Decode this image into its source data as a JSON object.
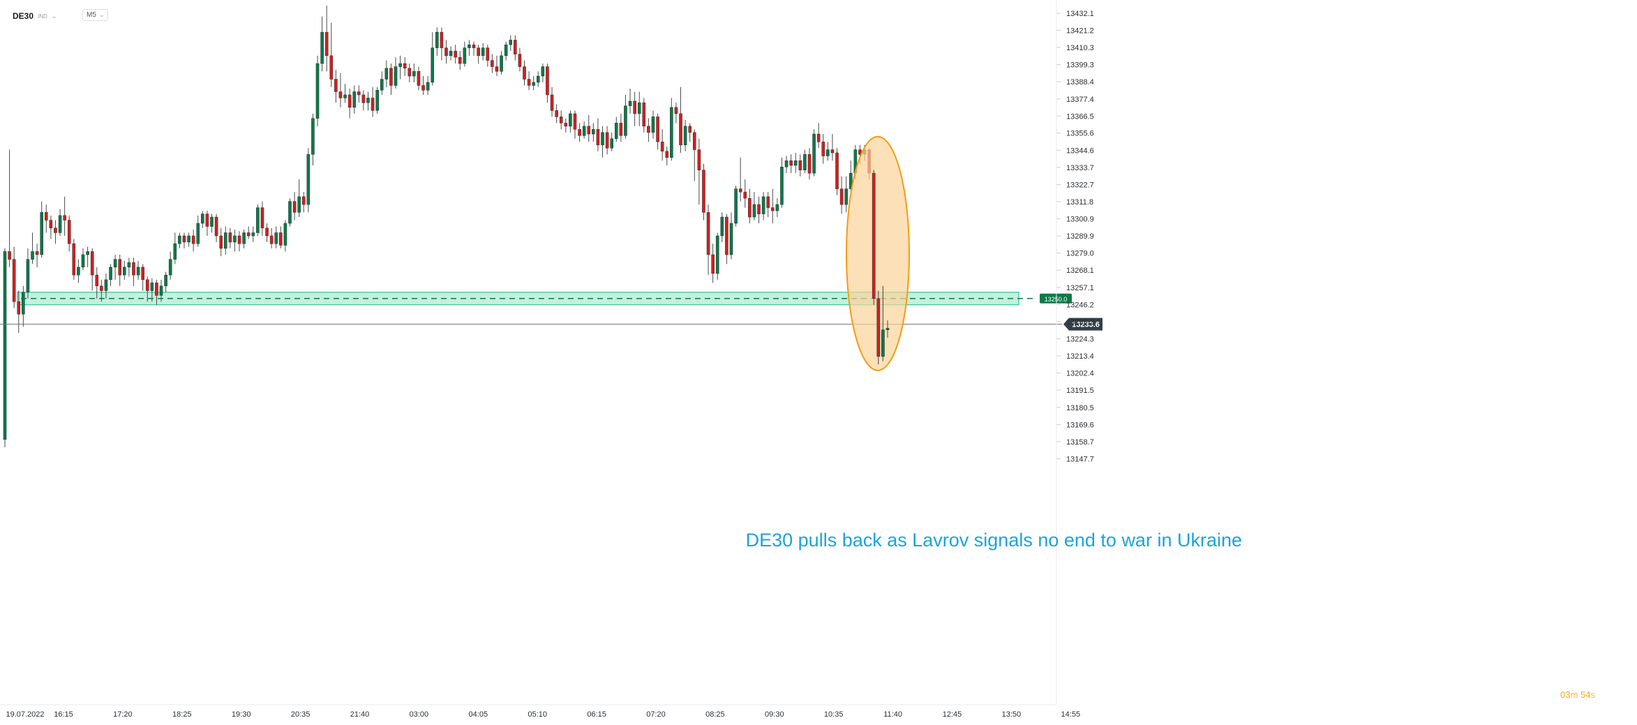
{
  "header": {
    "symbol": "DE30",
    "indicator_label": "IND",
    "timeframe": "M5",
    "chevron_icon": "chevron-down-icon"
  },
  "countdown": {
    "minutes": "03",
    "minutes_unit": "m",
    "seconds": "54",
    "seconds_unit": "s"
  },
  "colors": {
    "up": "#0b7a4b",
    "down": "#d0201f",
    "zone": "#2ec58a",
    "highlight_fill": "#fbd39a",
    "highlight_stroke": "#f39c12",
    "annotation": "#1aa3e0",
    "price_tag": "#333f48"
  },
  "chart_data": {
    "type": "candlestick",
    "instrument": "DE30",
    "ylim": [
      13143,
      13437
    ],
    "y_ticks": [
      13432.1,
      13421.2,
      13410.3,
      13399.3,
      13388.4,
      13377.4,
      13366.5,
      13355.6,
      13344.6,
      13333.7,
      13322.7,
      13311.8,
      13300.9,
      13289.9,
      13279.0,
      13268.1,
      13257.1,
      13246.2,
      13235.2,
      13224.3,
      13213.4,
      13202.4,
      13191.5,
      13180.5,
      13169.6,
      13158.7,
      13147.7
    ],
    "x_ticks": [
      "19.07.2022",
      "16:15",
      "17:20",
      "18:25",
      "19:30",
      "20:35",
      "21:40",
      "03:00",
      "04:05",
      "05:10",
      "06:15",
      "07:20",
      "08:25",
      "09:30",
      "10:35",
      "11:40",
      "12:45",
      "13:50",
      "14:55"
    ],
    "current_price": "13233.6",
    "alert_level": {
      "value": 13250.0,
      "label": "13250.0"
    },
    "support_zone": [
      13246,
      13254
    ],
    "annotation": "DE30 pulls back as Lavrov signals no end to war in Ukraine",
    "candles": [
      [
        13160,
        13280,
        13155,
        13282
      ],
      [
        13280,
        13275,
        13270,
        13345
      ],
      [
        13275,
        13248,
        13244,
        13283
      ],
      [
        13248,
        13240,
        13228,
        13255
      ],
      [
        13240,
        13254,
        13232,
        13258
      ],
      [
        13254,
        13275,
        13250,
        13282
      ],
      [
        13275,
        13280,
        13272,
        13292
      ],
      [
        13280,
        13278,
        13270,
        13285
      ],
      [
        13278,
        13305,
        13276,
        13312
      ],
      [
        13305,
        13300,
        13292,
        13310
      ],
      [
        13300,
        13295,
        13288,
        13303
      ],
      [
        13295,
        13292,
        13285,
        13300
      ],
      [
        13292,
        13303,
        13290,
        13307
      ],
      [
        13303,
        13300,
        13290,
        13315
      ],
      [
        13300,
        13285,
        13280,
        13303
      ],
      [
        13285,
        13265,
        13262,
        13288
      ],
      [
        13265,
        13270,
        13260,
        13275
      ],
      [
        13270,
        13278,
        13268,
        13282
      ],
      [
        13278,
        13280,
        13270,
        13283
      ],
      [
        13280,
        13265,
        13255,
        13282
      ],
      [
        13265,
        13258,
        13250,
        13270
      ],
      [
        13258,
        13255,
        13248,
        13262
      ],
      [
        13255,
        13262,
        13250,
        13266
      ],
      [
        13262,
        13270,
        13258,
        13272
      ],
      [
        13270,
        13275,
        13262,
        13278
      ],
      [
        13275,
        13265,
        13258,
        13278
      ],
      [
        13265,
        13270,
        13262,
        13274
      ],
      [
        13270,
        13273,
        13264,
        13276
      ],
      [
        13273,
        13265,
        13258,
        13276
      ],
      [
        13265,
        13270,
        13262,
        13274
      ],
      [
        13270,
        13262,
        13255,
        13272
      ],
      [
        13262,
        13255,
        13248,
        13264
      ],
      [
        13255,
        13260,
        13248,
        13263
      ],
      [
        13260,
        13252,
        13246,
        13262
      ],
      [
        13252,
        13258,
        13248,
        13262
      ],
      [
        13258,
        13265,
        13254,
        13267
      ],
      [
        13265,
        13275,
        13262,
        13280
      ],
      [
        13275,
        13285,
        13272,
        13292
      ],
      [
        13285,
        13290,
        13282,
        13292
      ],
      [
        13290,
        13286,
        13282,
        13292
      ],
      [
        13286,
        13290,
        13283,
        13292
      ],
      [
        13290,
        13285,
        13280,
        13294
      ],
      [
        13285,
        13298,
        13283,
        13303
      ],
      [
        13298,
        13304,
        13295,
        13306
      ],
      [
        13304,
        13296,
        13290,
        13306
      ],
      [
        13296,
        13302,
        13292,
        13304
      ],
      [
        13302,
        13290,
        13286,
        13304
      ],
      [
        13290,
        13282,
        13277,
        13295
      ],
      [
        13282,
        13292,
        13278,
        13296
      ],
      [
        13292,
        13286,
        13282,
        13295
      ],
      [
        13286,
        13290,
        13280,
        13294
      ],
      [
        13290,
        13285,
        13280,
        13293
      ],
      [
        13285,
        13292,
        13282,
        13294
      ],
      [
        13292,
        13290,
        13288,
        13296
      ],
      [
        13290,
        13292,
        13286,
        13296
      ],
      [
        13292,
        13308,
        13290,
        13310
      ],
      [
        13308,
        13295,
        13290,
        13312
      ],
      [
        13295,
        13290,
        13286,
        13298
      ],
      [
        13290,
        13285,
        13282,
        13295
      ],
      [
        13285,
        13292,
        13282,
        13296
      ],
      [
        13292,
        13284,
        13282,
        13296
      ],
      [
        13284,
        13298,
        13280,
        13300
      ],
      [
        13298,
        13312,
        13296,
        13314
      ],
      [
        13312,
        13305,
        13300,
        13318
      ],
      [
        13305,
        13315,
        13302,
        13326
      ],
      [
        13315,
        13310,
        13305,
        13318
      ],
      [
        13310,
        13342,
        13305,
        13346
      ],
      [
        13342,
        13365,
        13335,
        13368
      ],
      [
        13365,
        13400,
        13360,
        13405
      ],
      [
        13400,
        13420,
        13395,
        13430
      ],
      [
        13420,
        13405,
        13395,
        13437
      ],
      [
        13405,
        13390,
        13385,
        13426
      ],
      [
        13390,
        13382,
        13375,
        13396
      ],
      [
        13382,
        13378,
        13372,
        13394
      ],
      [
        13378,
        13380,
        13375,
        13387
      ],
      [
        13380,
        13372,
        13365,
        13384
      ],
      [
        13372,
        13382,
        13368,
        13386
      ],
      [
        13382,
        13380,
        13375,
        13386
      ],
      [
        13380,
        13375,
        13370,
        13383
      ],
      [
        13375,
        13378,
        13370,
        13382
      ],
      [
        13378,
        13370,
        13366,
        13385
      ],
      [
        13370,
        13383,
        13368,
        13385
      ],
      [
        13383,
        13390,
        13380,
        13395
      ],
      [
        13390,
        13397,
        13385,
        13402
      ],
      [
        13397,
        13386,
        13380,
        13400
      ],
      [
        13386,
        13398,
        13384,
        13404
      ],
      [
        13398,
        13400,
        13390,
        13405
      ],
      [
        13400,
        13397,
        13392,
        13404
      ],
      [
        13397,
        13392,
        13388,
        13400
      ],
      [
        13392,
        13395,
        13388,
        13400
      ],
      [
        13395,
        13386,
        13383,
        13398
      ],
      [
        13386,
        13383,
        13380,
        13392
      ],
      [
        13383,
        13388,
        13380,
        13392
      ],
      [
        13388,
        13410,
        13386,
        13420
      ],
      [
        13410,
        13420,
        13405,
        13423
      ],
      [
        13420,
        13410,
        13402,
        13423
      ],
      [
        13410,
        13405,
        13400,
        13415
      ],
      [
        13405,
        13408,
        13402,
        13411
      ],
      [
        13408,
        13404,
        13400,
        13412
      ],
      [
        13404,
        13400,
        13396,
        13408
      ],
      [
        13400,
        13410,
        13398,
        13414
      ],
      [
        13410,
        13412,
        13405,
        13415
      ],
      [
        13412,
        13410,
        13405,
        13414
      ],
      [
        13410,
        13405,
        13400,
        13412
      ],
      [
        13405,
        13410,
        13402,
        13413
      ],
      [
        13410,
        13402,
        13398,
        13412
      ],
      [
        13402,
        13398,
        13394,
        13406
      ],
      [
        13398,
        13395,
        13392,
        13405
      ],
      [
        13395,
        13405,
        13393,
        13408
      ],
      [
        13405,
        13412,
        13402,
        13414
      ],
      [
        13412,
        13415,
        13408,
        13418
      ],
      [
        13415,
        13406,
        13402,
        13418
      ],
      [
        13406,
        13398,
        13395,
        13410
      ],
      [
        13398,
        13390,
        13386,
        13402
      ],
      [
        13390,
        13386,
        13383,
        13395
      ],
      [
        13386,
        13388,
        13383,
        13392
      ],
      [
        13388,
        13392,
        13385,
        13395
      ],
      [
        13392,
        13398,
        13388,
        13400
      ],
      [
        13398,
        13380,
        13375,
        13400
      ],
      [
        13380,
        13370,
        13366,
        13385
      ],
      [
        13370,
        13366,
        13362,
        13374
      ],
      [
        13366,
        13362,
        13358,
        13370
      ],
      [
        13362,
        13360,
        13356,
        13365
      ],
      [
        13360,
        13368,
        13356,
        13370
      ],
      [
        13368,
        13358,
        13352,
        13370
      ],
      [
        13358,
        13354,
        13350,
        13362
      ],
      [
        13354,
        13360,
        13352,
        13363
      ],
      [
        13360,
        13355,
        13350,
        13367
      ],
      [
        13355,
        13358,
        13350,
        13362
      ],
      [
        13358,
        13348,
        13344,
        13365
      ],
      [
        13348,
        13356,
        13340,
        13360
      ],
      [
        13356,
        13346,
        13342,
        13360
      ],
      [
        13346,
        13352,
        13344,
        13356
      ],
      [
        13352,
        13362,
        13350,
        13366
      ],
      [
        13362,
        13354,
        13350,
        13368
      ],
      [
        13354,
        13373,
        13352,
        13380
      ],
      [
        13373,
        13376,
        13368,
        13384
      ],
      [
        13376,
        13368,
        13360,
        13382
      ],
      [
        13368,
        13375,
        13360,
        13382
      ],
      [
        13375,
        13360,
        13356,
        13378
      ],
      [
        13360,
        13356,
        13350,
        13365
      ],
      [
        13356,
        13366,
        13352,
        13370
      ],
      [
        13366,
        13350,
        13345,
        13368
      ],
      [
        13350,
        13344,
        13338,
        13358
      ],
      [
        13344,
        13340,
        13335,
        13347
      ],
      [
        13340,
        13372,
        13338,
        13378
      ],
      [
        13372,
        13368,
        13362,
        13375
      ],
      [
        13368,
        13348,
        13343,
        13385
      ],
      [
        13348,
        13360,
        13344,
        13364
      ],
      [
        13360,
        13356,
        13350,
        13362
      ],
      [
        13356,
        13345,
        13325,
        13358
      ],
      [
        13345,
        13332,
        13310,
        13352
      ],
      [
        13332,
        13305,
        13300,
        13336
      ],
      [
        13305,
        13278,
        13265,
        13310
      ],
      [
        13278,
        13266,
        13260,
        13285
      ],
      [
        13266,
        13290,
        13262,
        13292
      ],
      [
        13290,
        13302,
        13286,
        13305
      ],
      [
        13302,
        13278,
        13272,
        13304
      ],
      [
        13278,
        13298,
        13275,
        13305
      ],
      [
        13298,
        13320,
        13296,
        13322
      ],
      [
        13320,
        13318,
        13312,
        13340
      ],
      [
        13318,
        13314,
        13308,
        13326
      ],
      [
        13314,
        13302,
        13298,
        13320
      ],
      [
        13302,
        13310,
        13300,
        13318
      ],
      [
        13310,
        13304,
        13298,
        13315
      ],
      [
        13304,
        13315,
        13300,
        13318
      ],
      [
        13315,
        13308,
        13302,
        13318
      ],
      [
        13308,
        13306,
        13298,
        13320
      ],
      [
        13306,
        13310,
        13302,
        13314
      ],
      [
        13310,
        13334,
        13308,
        13340
      ],
      [
        13334,
        13338,
        13330,
        13341
      ],
      [
        13338,
        13335,
        13330,
        13342
      ],
      [
        13335,
        13338,
        13330,
        13343
      ],
      [
        13338,
        13332,
        13328,
        13342
      ],
      [
        13332,
        13342,
        13330,
        13345
      ],
      [
        13342,
        13330,
        13326,
        13346
      ],
      [
        13330,
        13355,
        13328,
        13358
      ],
      [
        13355,
        13350,
        13346,
        13362
      ],
      [
        13350,
        13341,
        13336,
        13355
      ],
      [
        13341,
        13345,
        13338,
        13350
      ],
      [
        13345,
        13343,
        13338,
        13355
      ],
      [
        13343,
        13320,
        13316,
        13346
      ],
      [
        13320,
        13310,
        13304,
        13328
      ],
      [
        13310,
        13320,
        13305,
        13328
      ],
      [
        13320,
        13330,
        13316,
        13338
      ],
      [
        13330,
        13345,
        13326,
        13348
      ],
      [
        13345,
        13342,
        13336,
        13348
      ],
      [
        13342,
        13345,
        13338,
        13348
      ],
      [
        13345,
        13330,
        13326,
        13346
      ],
      [
        13330,
        13250,
        13246,
        13332
      ],
      [
        13250,
        13213,
        13208,
        13255
      ],
      [
        13213,
        13230,
        13210,
        13258
      ],
      [
        13230,
        13231,
        13225,
        13236
      ]
    ]
  }
}
